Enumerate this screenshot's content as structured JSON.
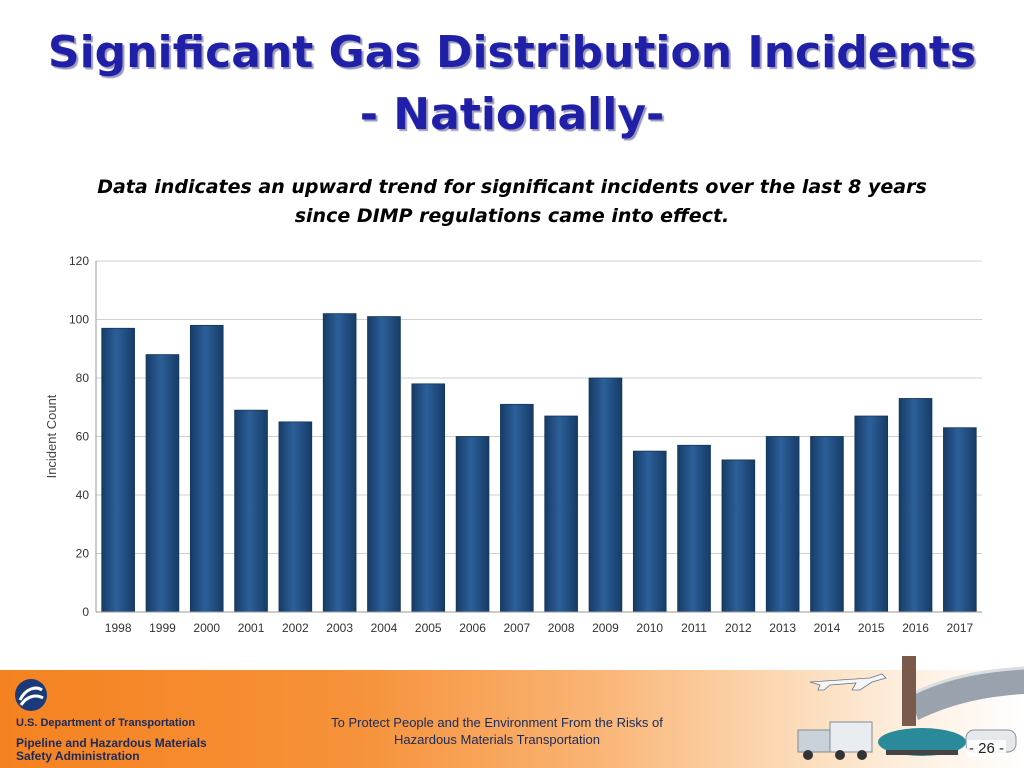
{
  "slide": {
    "title_line1": "Significant Gas Distribution Incidents",
    "title_line2": "- Nationally-",
    "subtitle_line1": "Data indicates an upward trend for significant incidents over the last 8 years",
    "subtitle_line2": "since DIMP regulations came into effect."
  },
  "chart_data": {
    "type": "bar",
    "title": "",
    "xlabel": "",
    "ylabel": "Incident Count",
    "categories": [
      "1998",
      "1999",
      "2000",
      "2001",
      "2002",
      "2003",
      "2004",
      "2005",
      "2006",
      "2007",
      "2008",
      "2009",
      "2010",
      "2011",
      "2012",
      "2013",
      "2014",
      "2015",
      "2016",
      "2017"
    ],
    "values": [
      97,
      88,
      98,
      69,
      65,
      102,
      101,
      78,
      60,
      71,
      67,
      80,
      55,
      57,
      52,
      60,
      60,
      67,
      73,
      63
    ],
    "ylim": [
      0,
      120
    ],
    "yticks": [
      0,
      20,
      40,
      60,
      80,
      100,
      120
    ],
    "grid": true,
    "bar_color": "#1f4f86"
  },
  "footer": {
    "department": "U.S. Department of Transportation",
    "agency_line1": "Pipeline and Hazardous Materials",
    "agency_line2": "Safety Administration",
    "mission_line1": "To Protect People and the Environment From the Risks of",
    "mission_line2": "Hazardous Materials Transportation",
    "page_number": "- 26 -"
  }
}
